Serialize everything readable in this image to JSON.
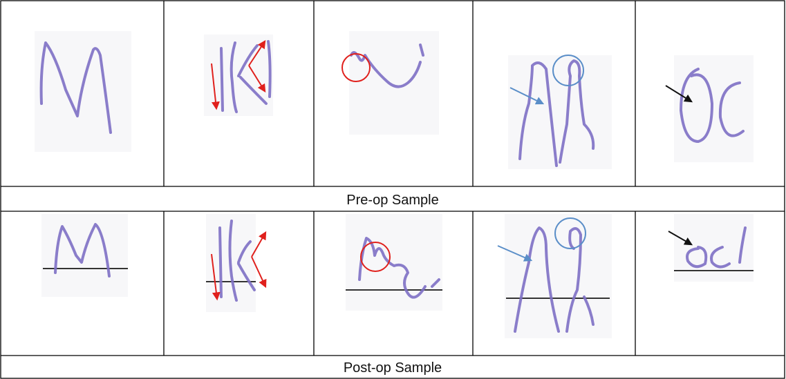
{
  "table": {
    "rows": [
      {
        "caption": "Pre-op Sample"
      },
      {
        "caption": "Post-op Sample"
      }
    ]
  }
}
